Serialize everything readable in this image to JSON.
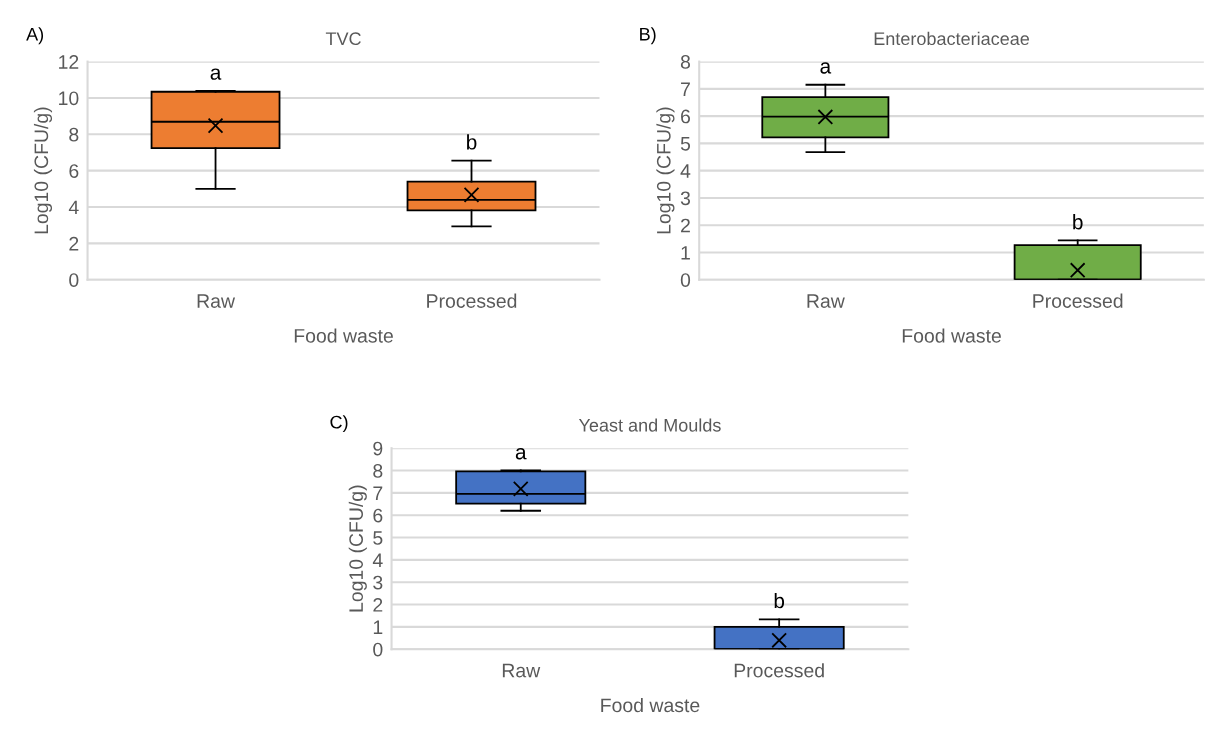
{
  "chart_data": [
    {
      "type": "box",
      "title": "TVC",
      "xlabel": "Food waste",
      "ylabel": "Log10 (CFU/g)",
      "categories": [
        "Raw",
        "Processed"
      ],
      "color": "#ed7d31",
      "ylim": [
        0,
        12
      ],
      "yticks": [
        0,
        2,
        4,
        6,
        8,
        10,
        12
      ],
      "grid": "y",
      "legend": false,
      "boxes": [
        {
          "low": 5.0,
          "q1": 7.24,
          "median": 8.69,
          "q3": 10.34,
          "high": 10.39,
          "mean": 8.48
        },
        {
          "low": 2.93,
          "q1": 3.81,
          "median": 4.39,
          "q3": 5.4,
          "high": 6.55,
          "mean": 4.67
        }
      ],
      "annotations": [
        "A)",
        {
          "text": "a",
          "x": "Raw",
          "y": 10.39
        },
        {
          "text": "b",
          "x": "Processed",
          "y": 6.55
        }
      ]
    },
    {
      "type": "box",
      "title": "Enterobacteriaceae",
      "xlabel": "Food waste",
      "ylabel": "Log10 (CFU/g)",
      "categories": [
        "Raw",
        "Processed"
      ],
      "color": "#70ad47",
      "ylim": [
        0,
        8
      ],
      "yticks": [
        0,
        1,
        2,
        3,
        4,
        5,
        6,
        7,
        8
      ],
      "grid": "y",
      "legend": false,
      "boxes": [
        {
          "low": 4.68,
          "q1": 5.22,
          "median": 5.98,
          "q3": 6.7,
          "high": 7.15,
          "mean": 5.97
        },
        {
          "low": 0,
          "q1": 0,
          "median": 0,
          "q3": 1.27,
          "high": 1.44,
          "mean": 0.35
        }
      ],
      "annotations": [
        "B)",
        {
          "text": "a",
          "x": "Raw",
          "y": 7.15
        },
        {
          "text": "b",
          "x": "Processed",
          "y": 1.44
        }
      ]
    },
    {
      "type": "box",
      "title": "Yeast and Moulds",
      "xlabel": "Food waste",
      "ylabel": "Log10 (CFU/g)",
      "categories": [
        "Raw",
        "Processed"
      ],
      "color": "#4472c4",
      "ylim": [
        0,
        9
      ],
      "yticks": [
        0,
        1,
        2,
        3,
        4,
        5,
        6,
        7,
        8,
        9
      ],
      "grid": "y",
      "legend": false,
      "boxes": [
        {
          "low": 6.2,
          "q1": 6.52,
          "median": 6.95,
          "q3": 7.96,
          "high": 8.0,
          "mean": 7.18
        },
        {
          "low": 0,
          "q1": 0,
          "median": 0,
          "q3": 1.0,
          "high": 1.34,
          "mean": 0.4
        }
      ],
      "annotations": [
        "C)",
        {
          "text": "a",
          "x": "Raw",
          "y": 8.0
        },
        {
          "text": "b",
          "x": "Processed",
          "y": 1.34
        }
      ]
    }
  ]
}
